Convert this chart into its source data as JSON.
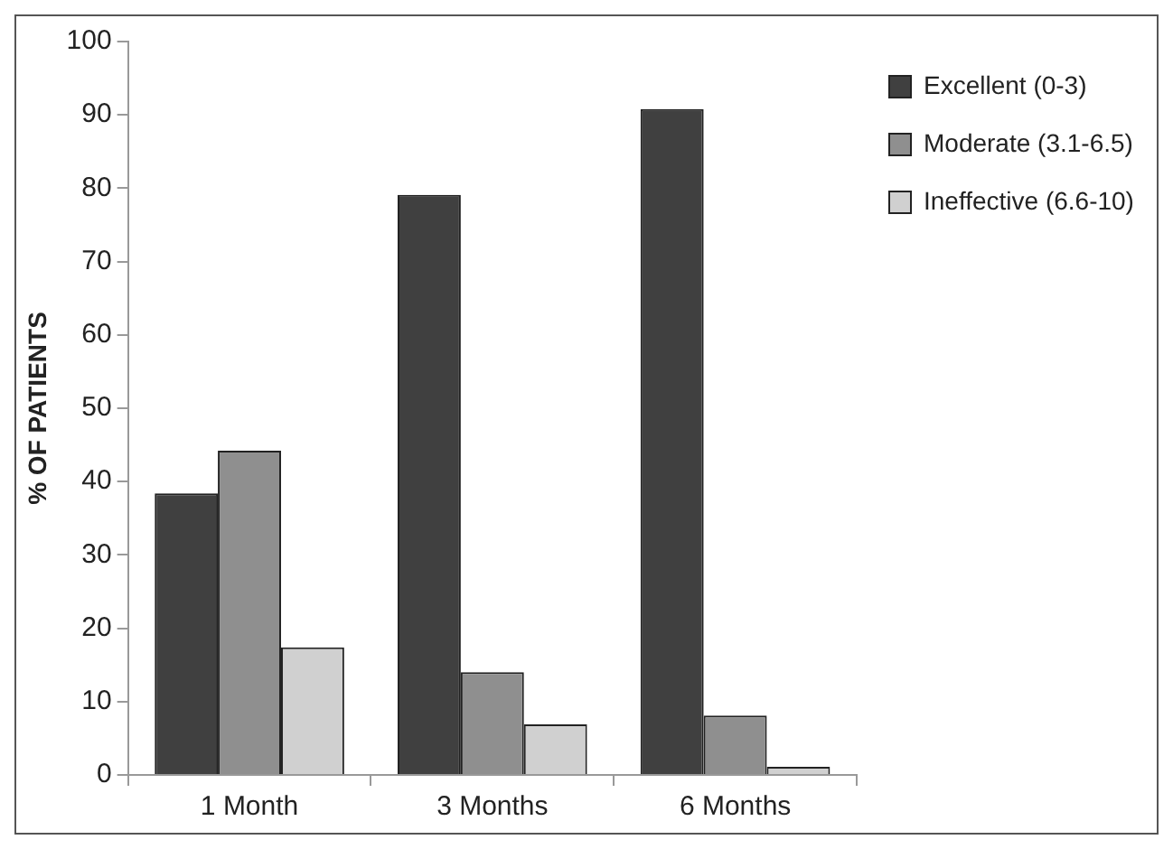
{
  "chart_data": {
    "type": "bar",
    "ylabel": "% OF PATIENTS",
    "categories": [
      "1 Month",
      "3 Months",
      "6 Months"
    ],
    "series": [
      {
        "name": "Excellent (0-3)",
        "color": "#404040",
        "values": [
          38.4,
          79.1,
          90.8
        ]
      },
      {
        "name": "Moderate (3.1-6.5)",
        "color": "#8f8f8f",
        "values": [
          44.2,
          14.0,
          8.1
        ]
      },
      {
        "name": "Ineffective (6.6-10)",
        "color": "#d0d0d0",
        "values": [
          17.4,
          6.9,
          1.1
        ]
      }
    ],
    "ylim": [
      0,
      100
    ],
    "yticks": [
      0,
      10,
      20,
      30,
      40,
      50,
      60,
      70,
      80,
      90,
      100
    ],
    "grid": false,
    "legend": "top right"
  }
}
